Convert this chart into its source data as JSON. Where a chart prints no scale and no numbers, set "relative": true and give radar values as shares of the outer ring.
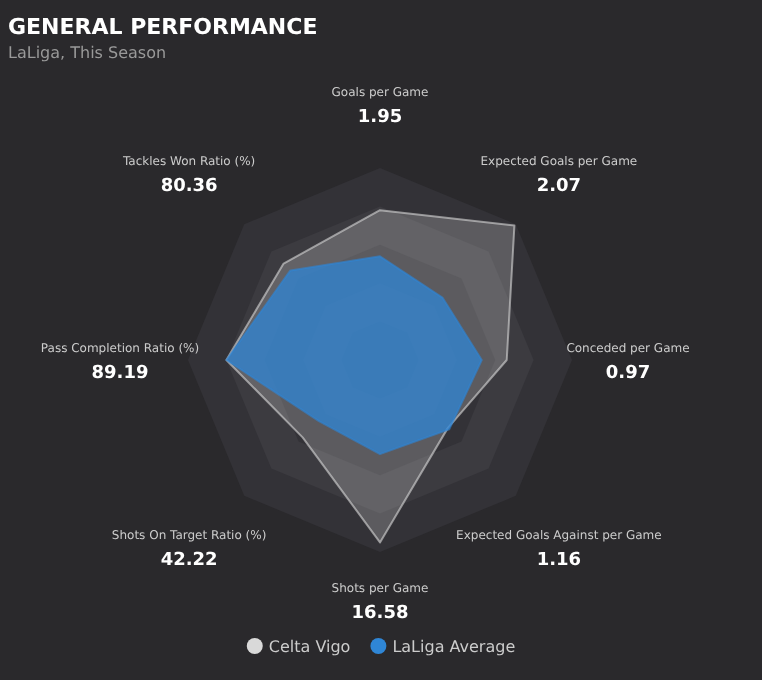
{
  "chart_data": {
    "type": "radar",
    "title": "GENERAL PERFORMANCE",
    "subtitle": "LaLiga, This Season",
    "relative": true,
    "grid": true,
    "legend": "bottom",
    "annotations": [
      {
        "text": "1.95",
        "x": "Goals per Game"
      },
      {
        "text": "2.07",
        "x": "Expected Goals per Game"
      },
      {
        "text": "0.97",
        "x": "Conceded per Game"
      },
      {
        "text": "1.16",
        "x": "Expected Goals Against per Game"
      },
      {
        "text": "16.58",
        "x": "Shots per Game"
      },
      {
        "text": "42.22",
        "x": "Shots On Target Ratio (%)"
      },
      {
        "text": "89.19",
        "x": "Pass Completion Ratio (%)"
      },
      {
        "text": "80.36",
        "x": "Tackles Won Ratio (%)"
      }
    ],
    "categories": [
      "Goals per Game",
      "Expected Goals per Game",
      "Conceded per Game",
      "Expected Goals Against per Game",
      "Shots per Game",
      "Shots On Target Ratio (%)",
      "Pass Completion Ratio (%)",
      "Tackles Won Ratio (%)"
    ],
    "series": [
      {
        "name": "Celta Vigo",
        "color": "#d9d9d9",
        "values": [
          0.78,
          0.99,
          0.66,
          0.5,
          0.95,
          0.57,
          0.8,
          0.71
        ]
      },
      {
        "name": "LaLiga Average",
        "color": "#2f86d6",
        "values": [
          0.54,
          0.46,
          0.53,
          0.51,
          0.49,
          0.45,
          0.8,
          0.66
        ]
      }
    ]
  }
}
